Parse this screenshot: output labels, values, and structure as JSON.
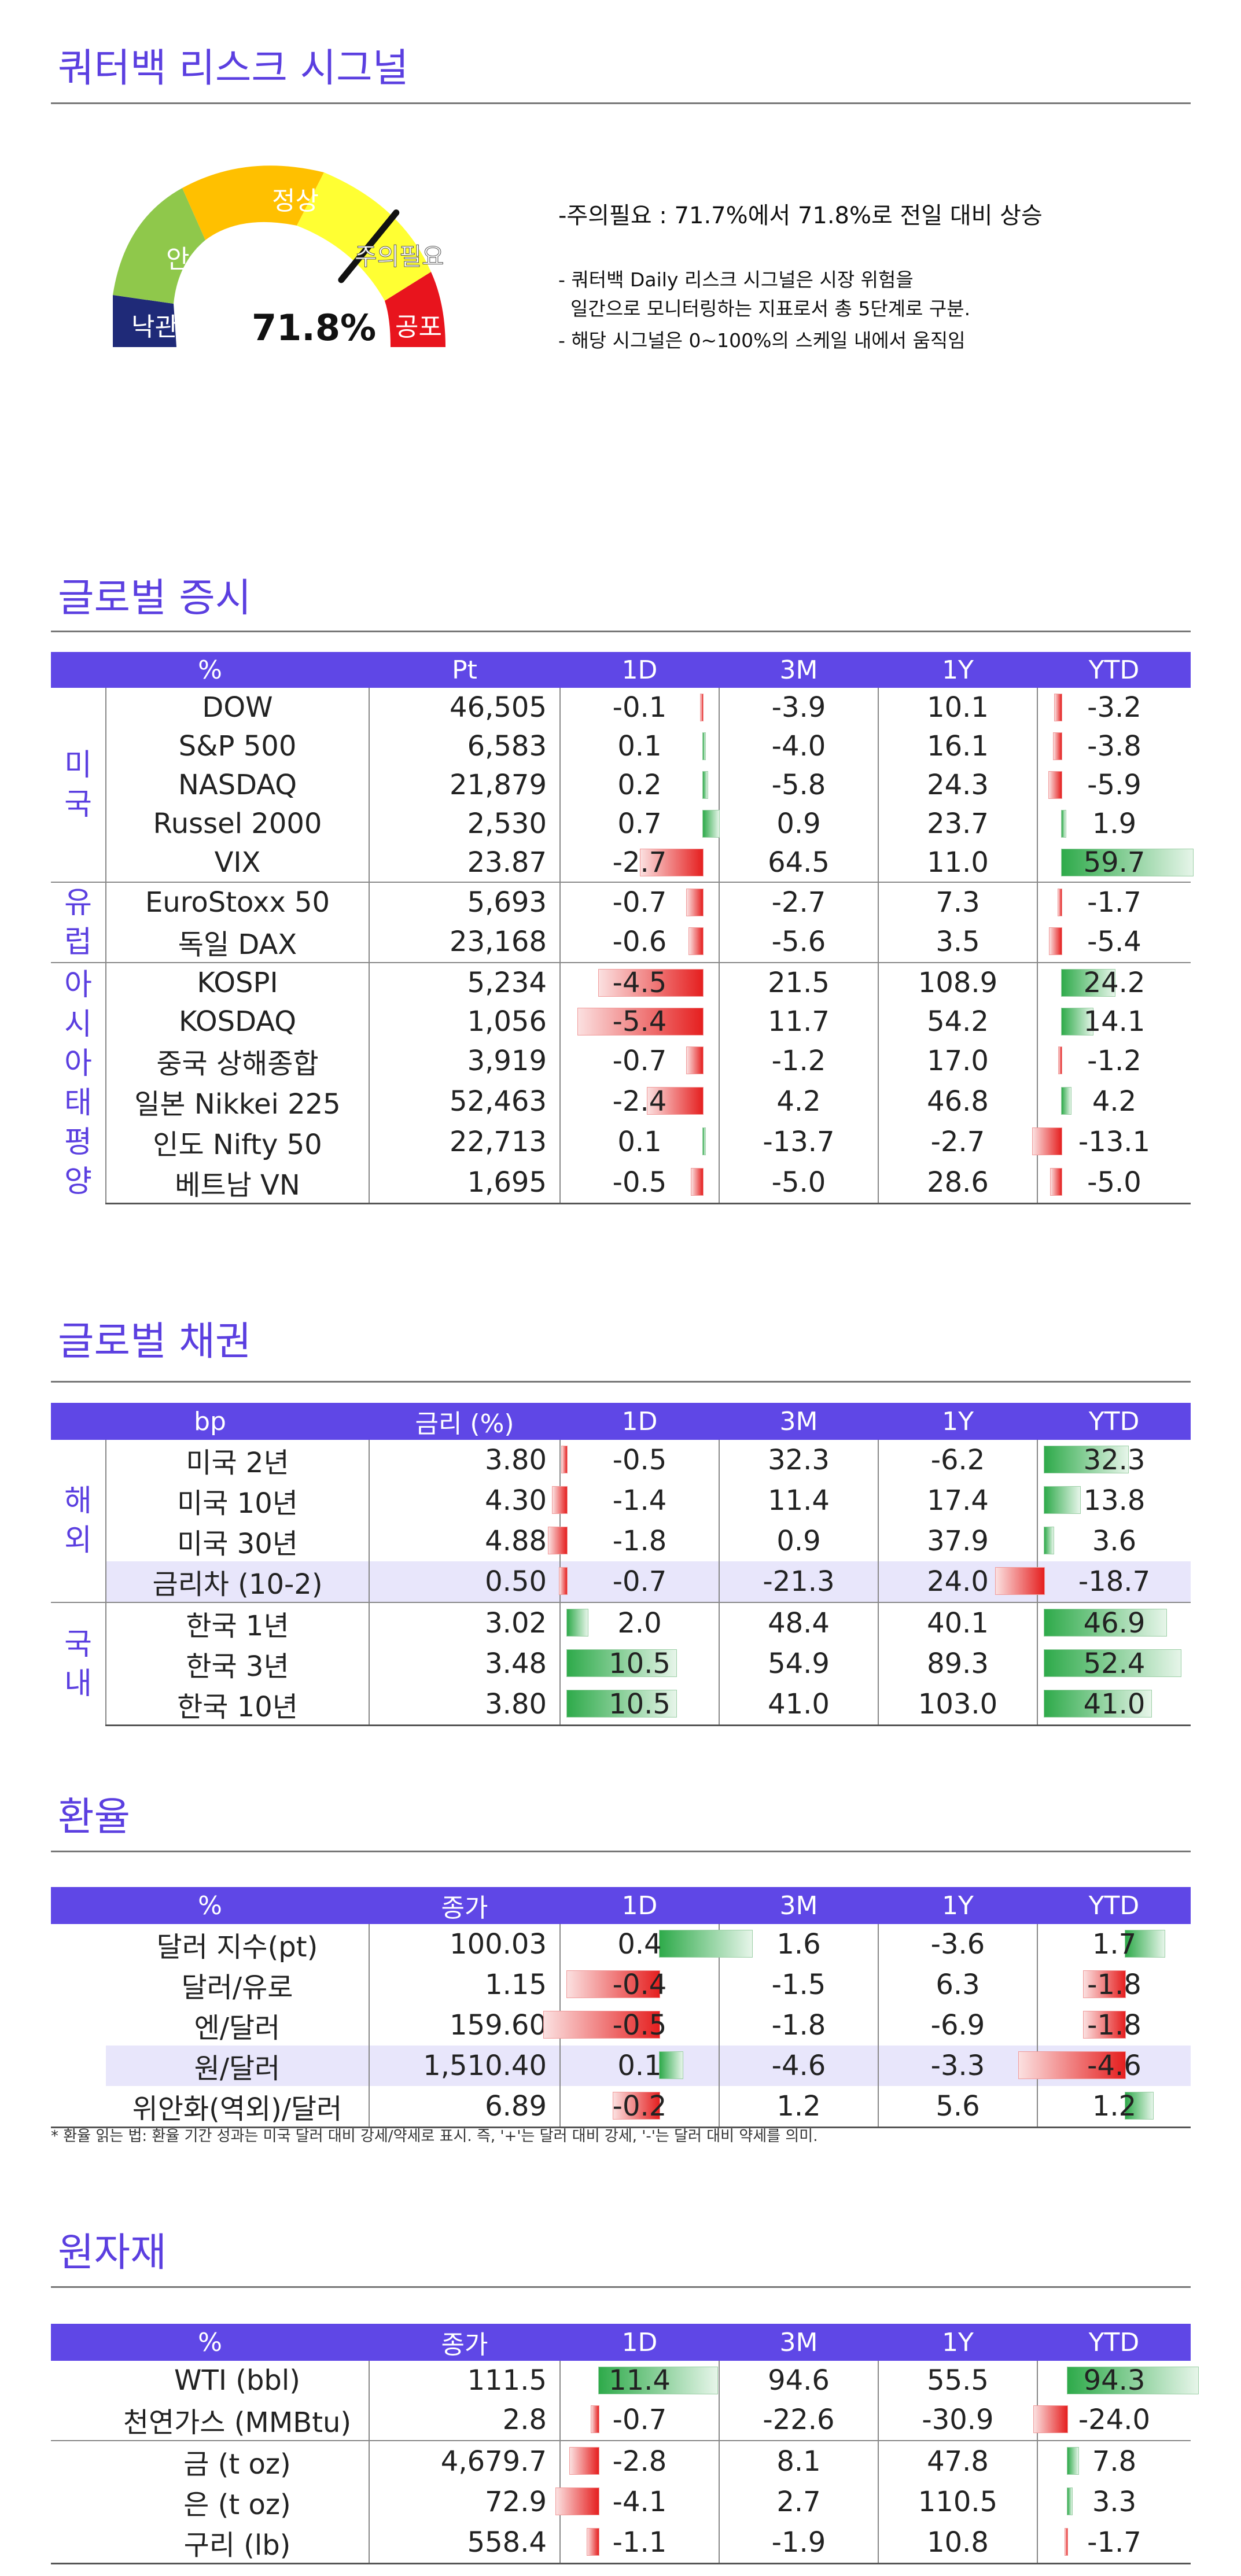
{
  "signal": {
    "title": "쿼터백 리스크 시그널",
    "value_label": "71.8%",
    "value": 71.8,
    "zones": [
      "낙관",
      "안심",
      "정상",
      "주의필요",
      "공포"
    ],
    "headline": "-주의필요 : 71.7%에서 71.8%로 전일 대비 상승",
    "notes": [
      "- 쿼터백 Daily 리스크 시그널은 시장 위험을",
      "  일간으로 모니터링하는 지표로서 총 5단계로 구분.",
      "- 해당 시그널은 0~100%의 스케일 내에서 움직임"
    ],
    "colors": {
      "zone1": "#1f2a78",
      "zone2": "#8fc84b",
      "zone3": "#ffc000",
      "zone4": "#ffff33",
      "zone5": "#e8141d",
      "accent": "#5f47e6"
    }
  },
  "equity": {
    "title": "글로벌 증시",
    "headers": [
      "%",
      "Pt",
      "1D",
      "3M",
      "1Y",
      "YTD"
    ],
    "groups": [
      {
        "label": "미국",
        "rows": [
          {
            "name": "DOW",
            "level": "46,505",
            "d1": "-0.1",
            "m3": "-3.9",
            "y1": "10.1",
            "ytd": "-3.2"
          },
          {
            "name": "S&P 500",
            "level": "6,583",
            "d1": "0.1",
            "m3": "-4.0",
            "y1": "16.1",
            "ytd": "-3.8"
          },
          {
            "name": "NASDAQ",
            "level": "21,879",
            "d1": "0.2",
            "m3": "-5.8",
            "y1": "24.3",
            "ytd": "-5.9"
          },
          {
            "name": "Russel 2000",
            "level": "2,530",
            "d1": "0.7",
            "m3": "0.9",
            "y1": "23.7",
            "ytd": "1.9"
          },
          {
            "name": "VIX",
            "level": "23.87",
            "d1": "-2.7",
            "m3": "64.5",
            "y1": "11.0",
            "ytd": "59.7"
          }
        ]
      },
      {
        "label": "유럽",
        "rows": [
          {
            "name": "EuroStoxx 50",
            "level": "5,693",
            "d1": "-0.7",
            "m3": "-2.7",
            "y1": "7.3",
            "ytd": "-1.7"
          },
          {
            "name": "독일 DAX",
            "level": "23,168",
            "d1": "-0.6",
            "m3": "-5.6",
            "y1": "3.5",
            "ytd": "-5.4"
          }
        ]
      },
      {
        "label": "아시아태평양",
        "rows": [
          {
            "name": "KOSPI",
            "level": "5,234",
            "d1": "-4.5",
            "m3": "21.5",
            "y1": "108.9",
            "ytd": "24.2"
          },
          {
            "name": "KOSDAQ",
            "level": "1,056",
            "d1": "-5.4",
            "m3": "11.7",
            "y1": "54.2",
            "ytd": "14.1"
          },
          {
            "name": "중국 상해종합",
            "level": "3,919",
            "d1": "-0.7",
            "m3": "-1.2",
            "y1": "17.0",
            "ytd": "-1.2"
          },
          {
            "name": "일본 Nikkei 225",
            "level": "52,463",
            "d1": "-2.4",
            "m3": "4.2",
            "y1": "46.8",
            "ytd": "4.2"
          },
          {
            "name": "인도 Nifty 50",
            "level": "22,713",
            "d1": "0.1",
            "m3": "-13.7",
            "y1": "-2.7",
            "ytd": "-13.1"
          },
          {
            "name": "베트남 VN",
            "level": "1,695",
            "d1": "-0.5",
            "m3": "-5.0",
            "y1": "28.6",
            "ytd": "-5.0"
          }
        ]
      }
    ]
  },
  "bonds": {
    "title": "글로벌 채권",
    "headers": [
      "bp",
      "금리 (%)",
      "1D",
      "3M",
      "1Y",
      "YTD"
    ],
    "groups": [
      {
        "label": "해외",
        "rows": [
          {
            "name": "미국 2년",
            "level": "3.80",
            "d1": "-0.5",
            "m3": "32.3",
            "y1": "-6.2",
            "ytd": "32.3"
          },
          {
            "name": "미국 10년",
            "level": "4.30",
            "d1": "-1.4",
            "m3": "11.4",
            "y1": "17.4",
            "ytd": "13.8"
          },
          {
            "name": "미국 30년",
            "level": "4.88",
            "d1": "-1.8",
            "m3": "0.9",
            "y1": "37.9",
            "ytd": "3.6"
          },
          {
            "name": "금리차 (10-2)",
            "level": "0.50",
            "d1": "-0.7",
            "m3": "-21.3",
            "y1": "24.0",
            "ytd": "-18.7"
          }
        ]
      },
      {
        "label": "국내",
        "rows": [
          {
            "name": "한국 1년",
            "level": "3.02",
            "d1": "2.0",
            "m3": "48.4",
            "y1": "40.1",
            "ytd": "46.9"
          },
          {
            "name": "한국 3년",
            "level": "3.48",
            "d1": "10.5",
            "m3": "54.9",
            "y1": "89.3",
            "ytd": "52.4"
          },
          {
            "name": "한국 10년",
            "level": "3.80",
            "d1": "10.5",
            "m3": "41.0",
            "y1": "103.0",
            "ytd": "41.0"
          }
        ]
      }
    ]
  },
  "fx": {
    "title": "환율",
    "headers": [
      "%",
      "종가",
      "1D",
      "3M",
      "1Y",
      "YTD"
    ],
    "rows": [
      {
        "name": "달러 지수(pt)",
        "level": "100.03",
        "d1": "0.4",
        "m3": "1.6",
        "y1": "-3.6",
        "ytd": "1.7"
      },
      {
        "name": "달러/유로",
        "level": "1.15",
        "d1": "-0.4",
        "m3": "-1.5",
        "y1": "6.3",
        "ytd": "-1.8"
      },
      {
        "name": "엔/달러",
        "level": "159.60",
        "d1": "-0.5",
        "m3": "-1.8",
        "y1": "-6.9",
        "ytd": "-1.8"
      },
      {
        "name": "원/달러",
        "level": "1,510.40",
        "d1": "0.1",
        "m3": "-4.6",
        "y1": "-3.3",
        "ytd": "-4.6"
      },
      {
        "name": "위안화(역외)/달러",
        "level": "6.89",
        "d1": "-0.2",
        "m3": "1.2",
        "y1": "5.6",
        "ytd": "1.2"
      }
    ],
    "footnote": "* 환율 읽는 법: 환율 기간 성과는 미국 달러 대비 강세/약세로 표시. 즉, '+'는 달러 대비 강세, '-'는 달러 대비 약세를 의미."
  },
  "commodities": {
    "title": "원자재",
    "headers": [
      "%",
      "종가",
      "1D",
      "3M",
      "1Y",
      "YTD"
    ],
    "rows": [
      {
        "name": "WTI (bbl)",
        "level": "111.5",
        "d1": "11.4",
        "m3": "94.6",
        "y1": "55.5",
        "ytd": "94.3"
      },
      {
        "name": "천연가스 (MMBtu)",
        "level": "2.8",
        "d1": "-0.7",
        "m3": "-22.6",
        "y1": "-30.9",
        "ytd": "-24.0"
      },
      {
        "name": "금 (t oz)",
        "level": "4,679.7",
        "d1": "-2.8",
        "m3": "8.1",
        "y1": "47.8",
        "ytd": "7.8"
      },
      {
        "name": "은 (t oz)",
        "level": "72.9",
        "d1": "-4.1",
        "m3": "2.7",
        "y1": "110.5",
        "ytd": "3.3"
      },
      {
        "name": "구리 (lb)",
        "level": "558.4",
        "d1": "-1.1",
        "m3": "-1.9",
        "y1": "10.8",
        "ytd": "-1.7"
      }
    ]
  }
}
